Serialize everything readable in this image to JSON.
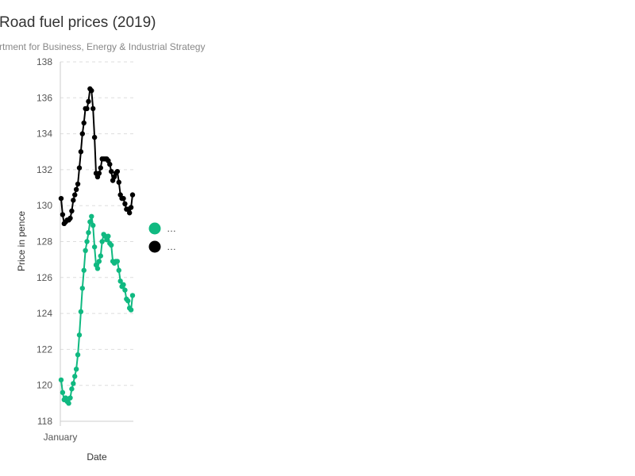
{
  "chart_data": {
    "type": "line",
    "title": "Road fuel prices (2019)",
    "subtitle": "rtment for Business, Energy & Industrial Strategy",
    "xlabel": "Date",
    "ylabel": "Price in pence",
    "x_tick_labels": [
      "January"
    ],
    "ylim": [
      118,
      138
    ],
    "y_ticks": [
      118,
      120,
      122,
      124,
      126,
      128,
      130,
      132,
      134,
      136,
      138
    ],
    "grid": true,
    "legend_position": "right",
    "series": [
      {
        "name": "…",
        "color": "#10b981",
        "values": [
          120.3,
          119.6,
          119.2,
          119.3,
          119.1,
          119.0,
          119.3,
          119.8,
          120.1,
          120.5,
          120.9,
          121.7,
          122.8,
          124.1,
          125.4,
          126.4,
          127.5,
          128.0,
          128.5,
          129.1,
          129.4,
          128.9,
          127.7,
          126.7,
          126.5,
          126.9,
          127.2,
          128.0,
          128.4,
          128.3,
          128.1,
          128.3,
          127.9,
          127.8,
          126.9,
          126.8,
          126.9,
          126.9,
          126.4,
          125.8,
          125.5,
          125.6,
          125.3,
          124.8,
          124.7,
          124.3,
          124.2,
          125.0
        ]
      },
      {
        "name": "…",
        "color": "#000000",
        "values": [
          130.4,
          129.5,
          129.0,
          129.1,
          129.2,
          129.2,
          129.3,
          129.7,
          130.3,
          130.6,
          130.9,
          131.2,
          132.1,
          133.0,
          134.0,
          134.6,
          135.4,
          135.4,
          135.8,
          136.5,
          136.4,
          135.4,
          133.8,
          131.8,
          131.6,
          131.8,
          132.1,
          132.6,
          132.6,
          132.6,
          132.6,
          132.5,
          132.3,
          131.9,
          131.4,
          131.6,
          131.8,
          131.9,
          131.3,
          130.6,
          130.4,
          130.4,
          130.1,
          129.8,
          129.8,
          129.6,
          129.9,
          130.6
        ]
      }
    ]
  }
}
